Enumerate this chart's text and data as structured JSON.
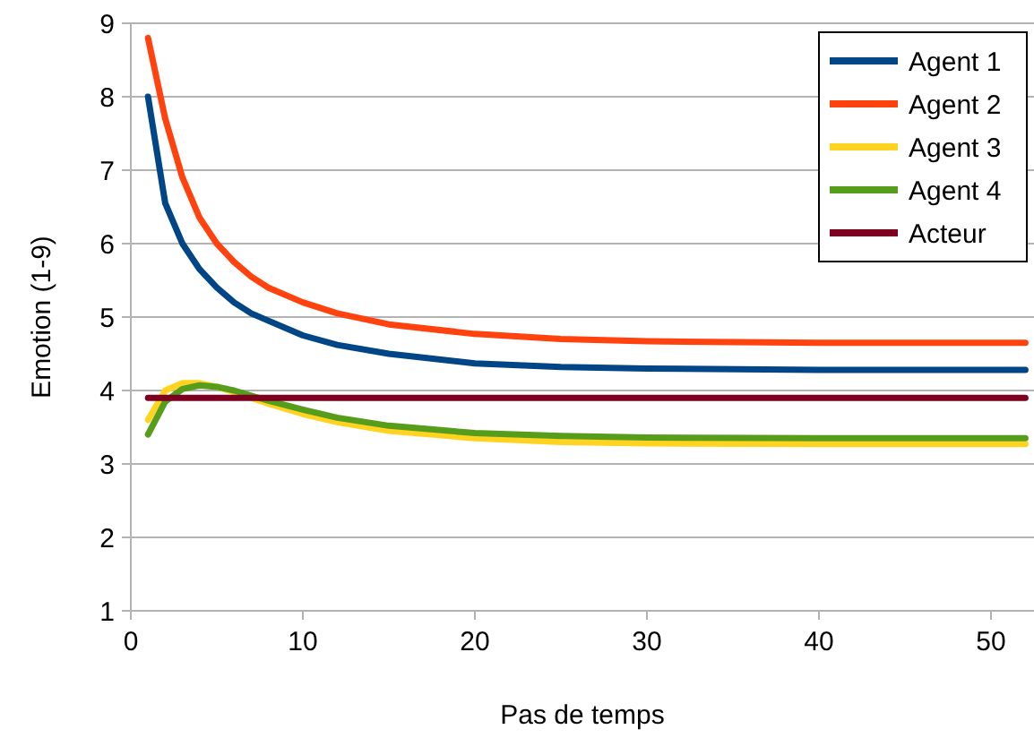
{
  "chart_data": {
    "type": "line",
    "xlabel": "Pas de temps",
    "ylabel": "Emotion (1-9)",
    "xlim": [
      0,
      52.5
    ],
    "xticks": [
      0,
      10,
      20,
      30,
      40,
      50
    ],
    "ylim": [
      1,
      9
    ],
    "yticks": [
      1,
      2,
      3,
      4,
      5,
      6,
      7,
      8,
      9
    ],
    "grid": "y",
    "legend": "top right",
    "marker": "none",
    "line_style": "solid",
    "x": [
      1,
      2,
      3,
      4,
      5,
      6,
      7,
      8,
      10,
      12,
      15,
      20,
      25,
      30,
      40,
      52
    ],
    "series": [
      {
        "name": "Agent 1",
        "color": "#004586",
        "values": [
          8.0,
          6.55,
          6.0,
          5.65,
          5.4,
          5.2,
          5.05,
          4.95,
          4.75,
          4.62,
          4.5,
          4.37,
          4.32,
          4.3,
          4.28,
          4.28
        ]
      },
      {
        "name": "Agent 2",
        "color": "#ff420e",
        "values": [
          8.8,
          7.7,
          6.9,
          6.35,
          6.0,
          5.75,
          5.55,
          5.4,
          5.2,
          5.05,
          4.9,
          4.77,
          4.7,
          4.67,
          4.65,
          4.65
        ]
      },
      {
        "name": "Agent 3",
        "color": "#ffd320",
        "values": [
          3.6,
          4.0,
          4.1,
          4.1,
          4.05,
          3.98,
          3.9,
          3.82,
          3.68,
          3.57,
          3.45,
          3.35,
          3.3,
          3.28,
          3.27,
          3.27
        ]
      },
      {
        "name": "Agent 4",
        "color": "#579d1c",
        "values": [
          3.4,
          3.85,
          4.02,
          4.07,
          4.05,
          4.0,
          3.93,
          3.86,
          3.74,
          3.63,
          3.52,
          3.42,
          3.38,
          3.36,
          3.35,
          3.35
        ]
      },
      {
        "name": "Acteur",
        "color": "#7e0021",
        "values": [
          3.9,
          3.9,
          3.9,
          3.9,
          3.9,
          3.9,
          3.9,
          3.9,
          3.9,
          3.9,
          3.9,
          3.9,
          3.9,
          3.9,
          3.9,
          3.9
        ]
      }
    ]
  }
}
